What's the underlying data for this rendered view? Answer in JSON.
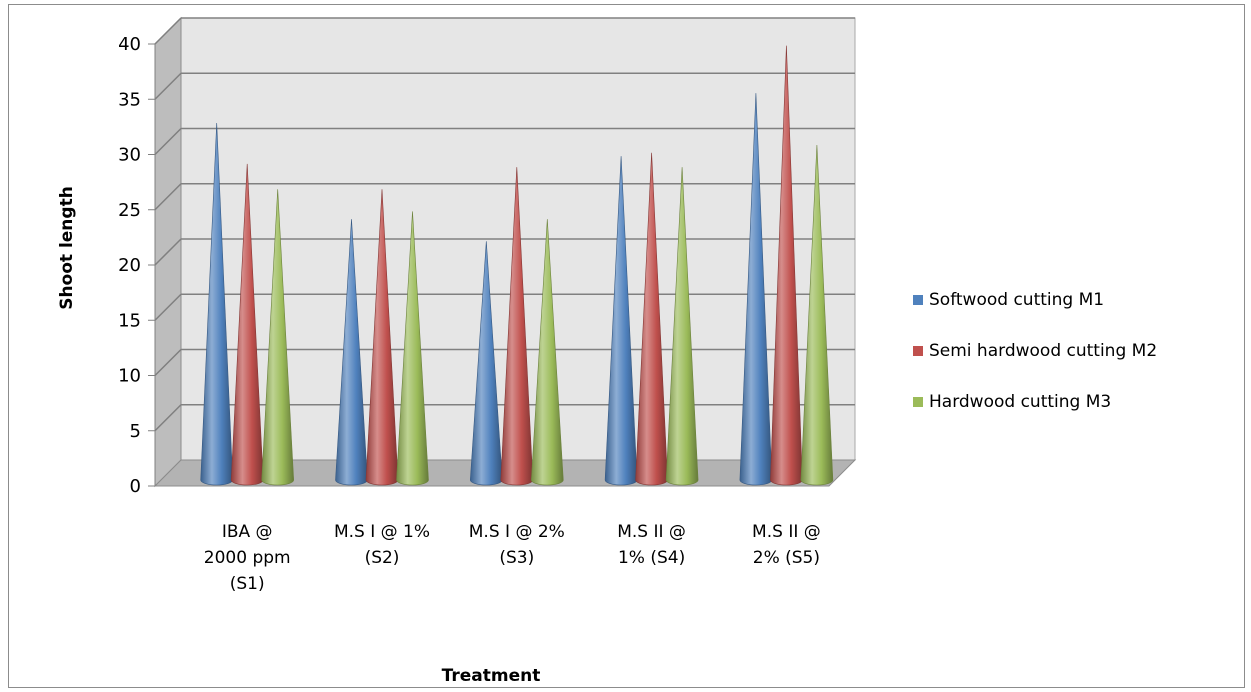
{
  "chart_data": {
    "type": "bar",
    "title": "",
    "xlabel": "Treatment",
    "ylabel": "Shoot length",
    "ylim": [
      0,
      40
    ],
    "yticks": [
      0,
      5,
      10,
      15,
      20,
      25,
      30,
      35,
      40
    ],
    "categories": [
      [
        "IBA @",
        "2000 ppm",
        "(S1)"
      ],
      [
        "M.S I @ 1%",
        "(S2)"
      ],
      [
        "M.S I @ 2%",
        "(S3)"
      ],
      [
        "M.S II @",
        "1% (S4)"
      ],
      [
        "M.S II @",
        "2% (S5)"
      ]
    ],
    "series": [
      {
        "name": "Softwood cutting  M1",
        "values": [
          30.5,
          21.8,
          19.8,
          27.5,
          33.2
        ],
        "color": "#4F81BD"
      },
      {
        "name": "Semi hardwood cutting  M2",
        "values": [
          26.8,
          24.5,
          26.5,
          27.8,
          37.5
        ],
        "color": "#C0504D"
      },
      {
        "name": "Hardwood cutting  M3",
        "values": [
          24.5,
          22.5,
          21.8,
          26.5,
          28.5
        ],
        "color": "#9BBB59"
      }
    ],
    "bar_shape": "cone",
    "grid": true,
    "legend_position": "right"
  }
}
